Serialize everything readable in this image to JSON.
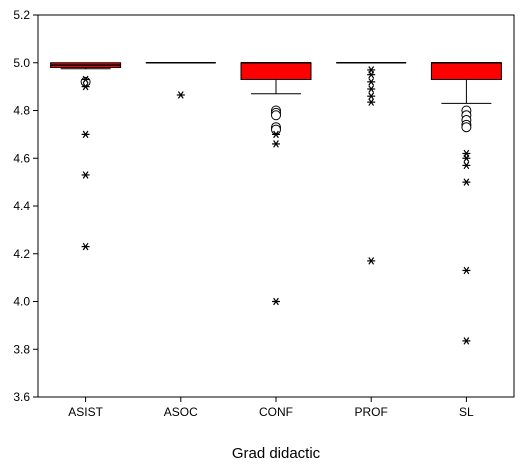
{
  "chart_data": {
    "type": "boxplot",
    "title": "",
    "xlabel": "Grad didactic",
    "ylabel": "",
    "ylim": [
      3.6,
      5.2
    ],
    "yticks": [
      "3.6",
      "3.8",
      "4.0",
      "4.2",
      "4.4",
      "4.6",
      "4.8",
      "5.0",
      "5.2"
    ],
    "grid": false,
    "legend": "none",
    "box_color": "#ff0000",
    "categories": [
      "ASIST",
      "ASOC",
      "CONF",
      "PROF",
      "SL"
    ],
    "boxes": [
      {
        "category": "ASIST",
        "q1": 4.98,
        "median": 4.99,
        "q3": 5.0,
        "whisker_low": 4.975,
        "whisker_high": 5.0,
        "outliers_circle": [
          4.92
        ],
        "outliers_star": [
          4.93,
          4.9,
          4.7,
          4.53,
          4.23
        ]
      },
      {
        "category": "ASOC",
        "q1": 5.0,
        "median": 5.0,
        "q3": 5.0,
        "whisker_low": 5.0,
        "whisker_high": 5.0,
        "outliers_circle": [],
        "outliers_star": [
          4.865
        ]
      },
      {
        "category": "CONF",
        "q1": 4.93,
        "median": 5.0,
        "q3": 5.0,
        "whisker_low": 4.87,
        "whisker_high": 5.0,
        "outliers_circle": [
          4.8,
          4.79,
          4.78,
          4.73,
          4.72
        ],
        "outliers_star": [
          4.7,
          4.66,
          4.0
        ]
      },
      {
        "category": "PROF",
        "q1": 5.0,
        "median": 5.0,
        "q3": 5.0,
        "whisker_low": 5.0,
        "whisker_high": 5.0,
        "outliers_circle": [],
        "outliers_star": [
          4.97,
          4.95,
          4.92,
          4.89,
          4.86,
          4.835,
          4.17
        ]
      },
      {
        "category": "SL",
        "q1": 4.93,
        "median": 5.0,
        "q3": 5.0,
        "whisker_low": 4.83,
        "whisker_high": 5.0,
        "outliers_circle": [
          4.8,
          4.78,
          4.76,
          4.74,
          4.73
        ],
        "outliers_star": [
          4.62,
          4.6,
          4.57,
          4.5,
          4.13,
          3.835
        ]
      }
    ]
  }
}
